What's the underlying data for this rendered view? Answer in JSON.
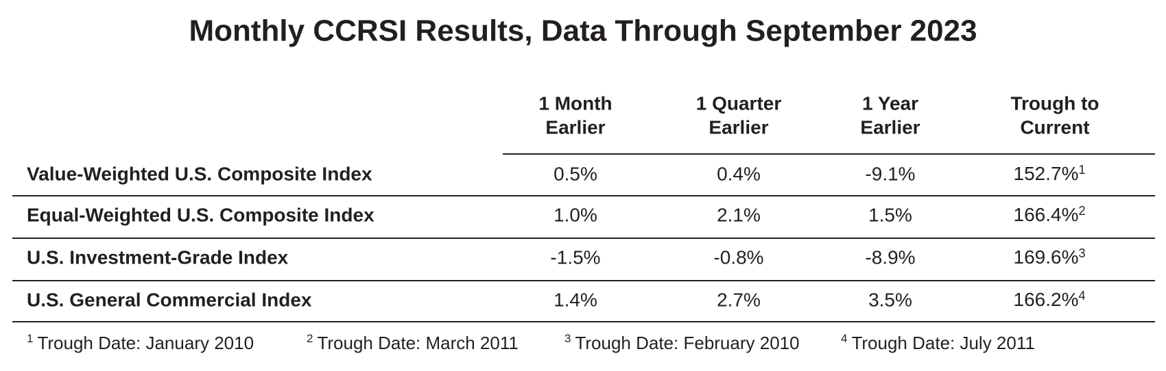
{
  "title": "Monthly CCRSI Results, Data Through September 2023",
  "table": {
    "columns": [
      [
        "1 Month",
        "Earlier"
      ],
      [
        "1 Quarter",
        "Earlier"
      ],
      [
        "1 Year",
        "Earlier"
      ],
      [
        "Trough to",
        "Current"
      ]
    ],
    "rows": [
      {
        "label": "Value-Weighted U.S. Composite Index",
        "cells": [
          "0.5%",
          "0.4%",
          "-9.1%",
          "152.7%"
        ],
        "note": "1"
      },
      {
        "label": "Equal-Weighted U.S. Composite Index",
        "cells": [
          "1.0%",
          "2.1%",
          "1.5%",
          "166.4%"
        ],
        "note": "2"
      },
      {
        "label": "U.S. Investment-Grade Index",
        "cells": [
          "-1.5%",
          "-0.8%",
          "-8.9%",
          "169.6%"
        ],
        "note": "3"
      },
      {
        "label": "U.S. General Commercial Index",
        "cells": [
          "1.4%",
          "2.7%",
          "3.5%",
          "166.2%"
        ],
        "note": "4"
      }
    ]
  },
  "footnotes": [
    {
      "mark": "1",
      "text": "Trough Date: January 2010"
    },
    {
      "mark": "2",
      "text": "Trough Date: March 2011"
    },
    {
      "mark": "3",
      "text": "Trough Date: February 2010"
    },
    {
      "mark": "4",
      "text": "Trough Date: July 2011"
    }
  ]
}
